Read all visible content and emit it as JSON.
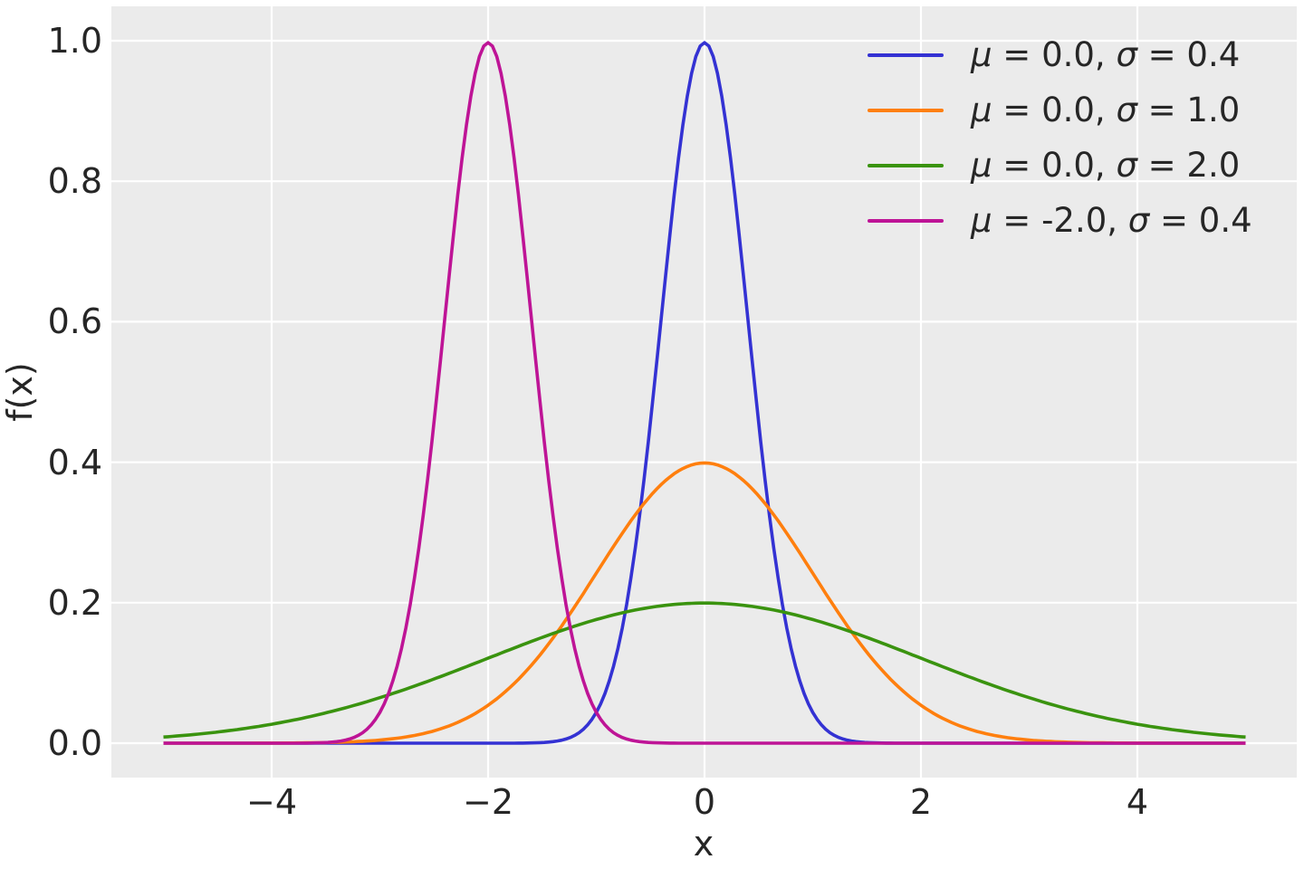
{
  "chart_data": {
    "type": "line",
    "function": "gaussian_pdf",
    "title": "",
    "xlabel": "x",
    "ylabel": "f(x)",
    "xlim": [
      -5.5,
      5.5
    ],
    "ylim": [
      -0.05,
      1.05
    ],
    "x_data_range": [
      -5,
      5
    ],
    "x_ticks": [
      -4,
      -2,
      0,
      2,
      4
    ],
    "x_tick_labels": [
      "−4",
      "−2",
      "0",
      "2",
      "4"
    ],
    "y_ticks": [
      0.0,
      0.2,
      0.4,
      0.6,
      0.8,
      1.0
    ],
    "y_tick_labels": [
      "0.0",
      "0.2",
      "0.4",
      "0.6",
      "0.8",
      "1.0"
    ],
    "grid": true,
    "series": [
      {
        "name": "μ = 0.0, σ = 0.4",
        "mu": 0.0,
        "sigma": 0.4,
        "peak": 0.997,
        "color": "#3432d3"
      },
      {
        "name": "μ = 0.0, σ = 1.0",
        "mu": 0.0,
        "sigma": 1.0,
        "peak": 0.399,
        "color": "#ff7f0e"
      },
      {
        "name": "μ = 0.0, σ = 2.0",
        "mu": 0.0,
        "sigma": 2.0,
        "peak": 0.199,
        "color": "#3a930f"
      },
      {
        "name": "μ = -2.0, σ = 0.4",
        "mu": -2.0,
        "sigma": 0.4,
        "peak": 0.997,
        "color": "#be1496"
      }
    ],
    "legend": {
      "position": "upper right",
      "frame": false
    },
    "style": {
      "panel_bg": "#ebebeb",
      "grid_color": "#ffffff",
      "text_color": "#262626",
      "figure_bg": "#ffffff",
      "line_width": 3.6
    }
  }
}
